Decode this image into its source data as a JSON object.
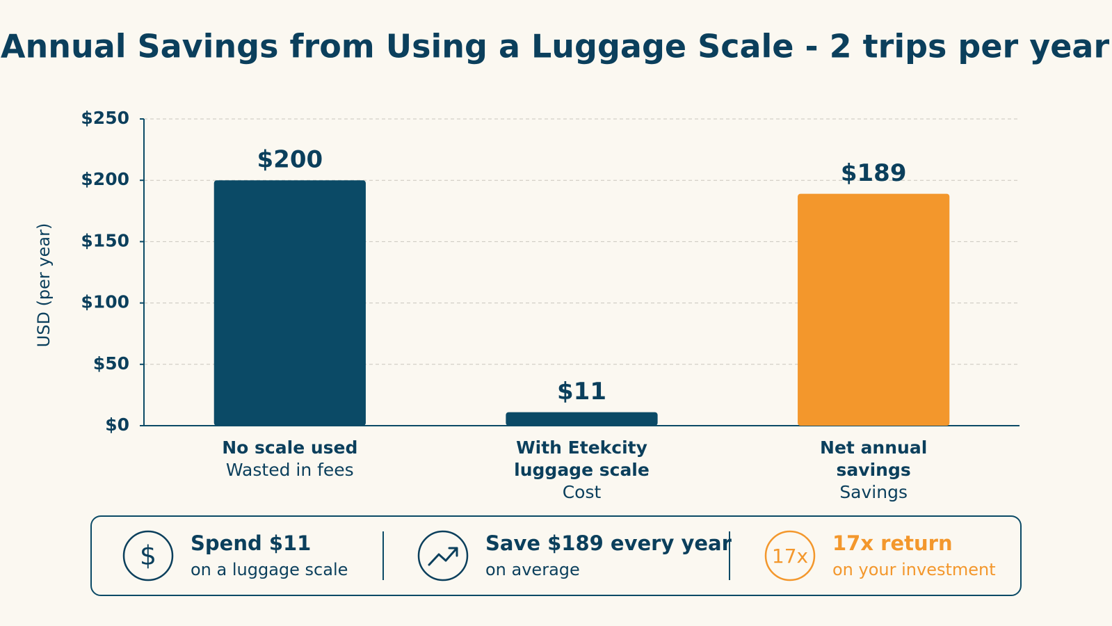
{
  "chart_data": {
    "type": "bar",
    "title": "Annual Savings from Using a Luggage Scale - 2 trips per year",
    "y_label": "USD (per year)",
    "categories": [
      "No scale used",
      "With Etekcity luggage scale",
      "Net annual savings"
    ],
    "subcategories": [
      "Wasted in fees",
      "Cost",
      "Savings"
    ],
    "values": [
      200,
      11,
      189
    ],
    "value_labels": [
      "$200",
      "$11",
      "$189"
    ],
    "colors": [
      "#0b4a66",
      "#0b4a66",
      "#f3972c"
    ],
    "ylim": [
      0,
      250
    ],
    "yticks": [
      {
        "value": 0,
        "label": "$0"
      },
      {
        "value": 50,
        "label": "$50"
      },
      {
        "value": 100,
        "label": "$100"
      },
      {
        "value": 150,
        "label": "$150"
      },
      {
        "value": 200,
        "label": "$200"
      },
      {
        "value": 250,
        "label": "$250"
      }
    ],
    "grid": true
  },
  "summary": [
    {
      "icon": "$",
      "title": "Spend $11",
      "subtitle": "on a luggage scale",
      "color": "#0b3f5c"
    },
    {
      "title": "Save $189 every year",
      "subtitle": "on average",
      "color": "#0b3f5c"
    },
    {
      "icon": "17x",
      "title": "17x return",
      "subtitle": "on your investment",
      "color": "#f3972c"
    }
  ]
}
